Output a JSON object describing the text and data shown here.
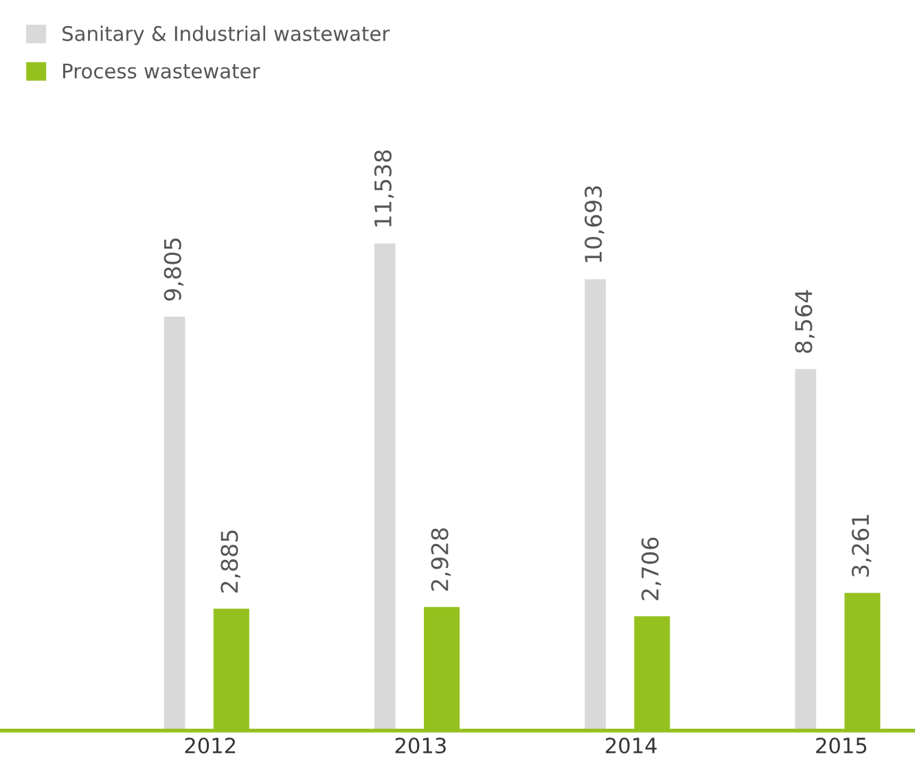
{
  "chart_data": {
    "type": "bar",
    "categories": [
      "2012",
      "2013",
      "2014",
      "2015"
    ],
    "series": [
      {
        "name": "Sanitary & Industrial wastewater",
        "color": "#d9d9d9",
        "values": [
          9805,
          11538,
          10693,
          8564
        ],
        "value_labels": [
          "9,805",
          "11,538",
          "10,693",
          "8,564"
        ]
      },
      {
        "name": "Process wastewater",
        "color": "#95c11f",
        "values": [
          2885,
          2928,
          2706,
          3261
        ],
        "value_labels": [
          "2,885",
          "2,928",
          "2,706",
          "3,261"
        ]
      }
    ],
    "legend": "top left",
    "grid": false
  }
}
